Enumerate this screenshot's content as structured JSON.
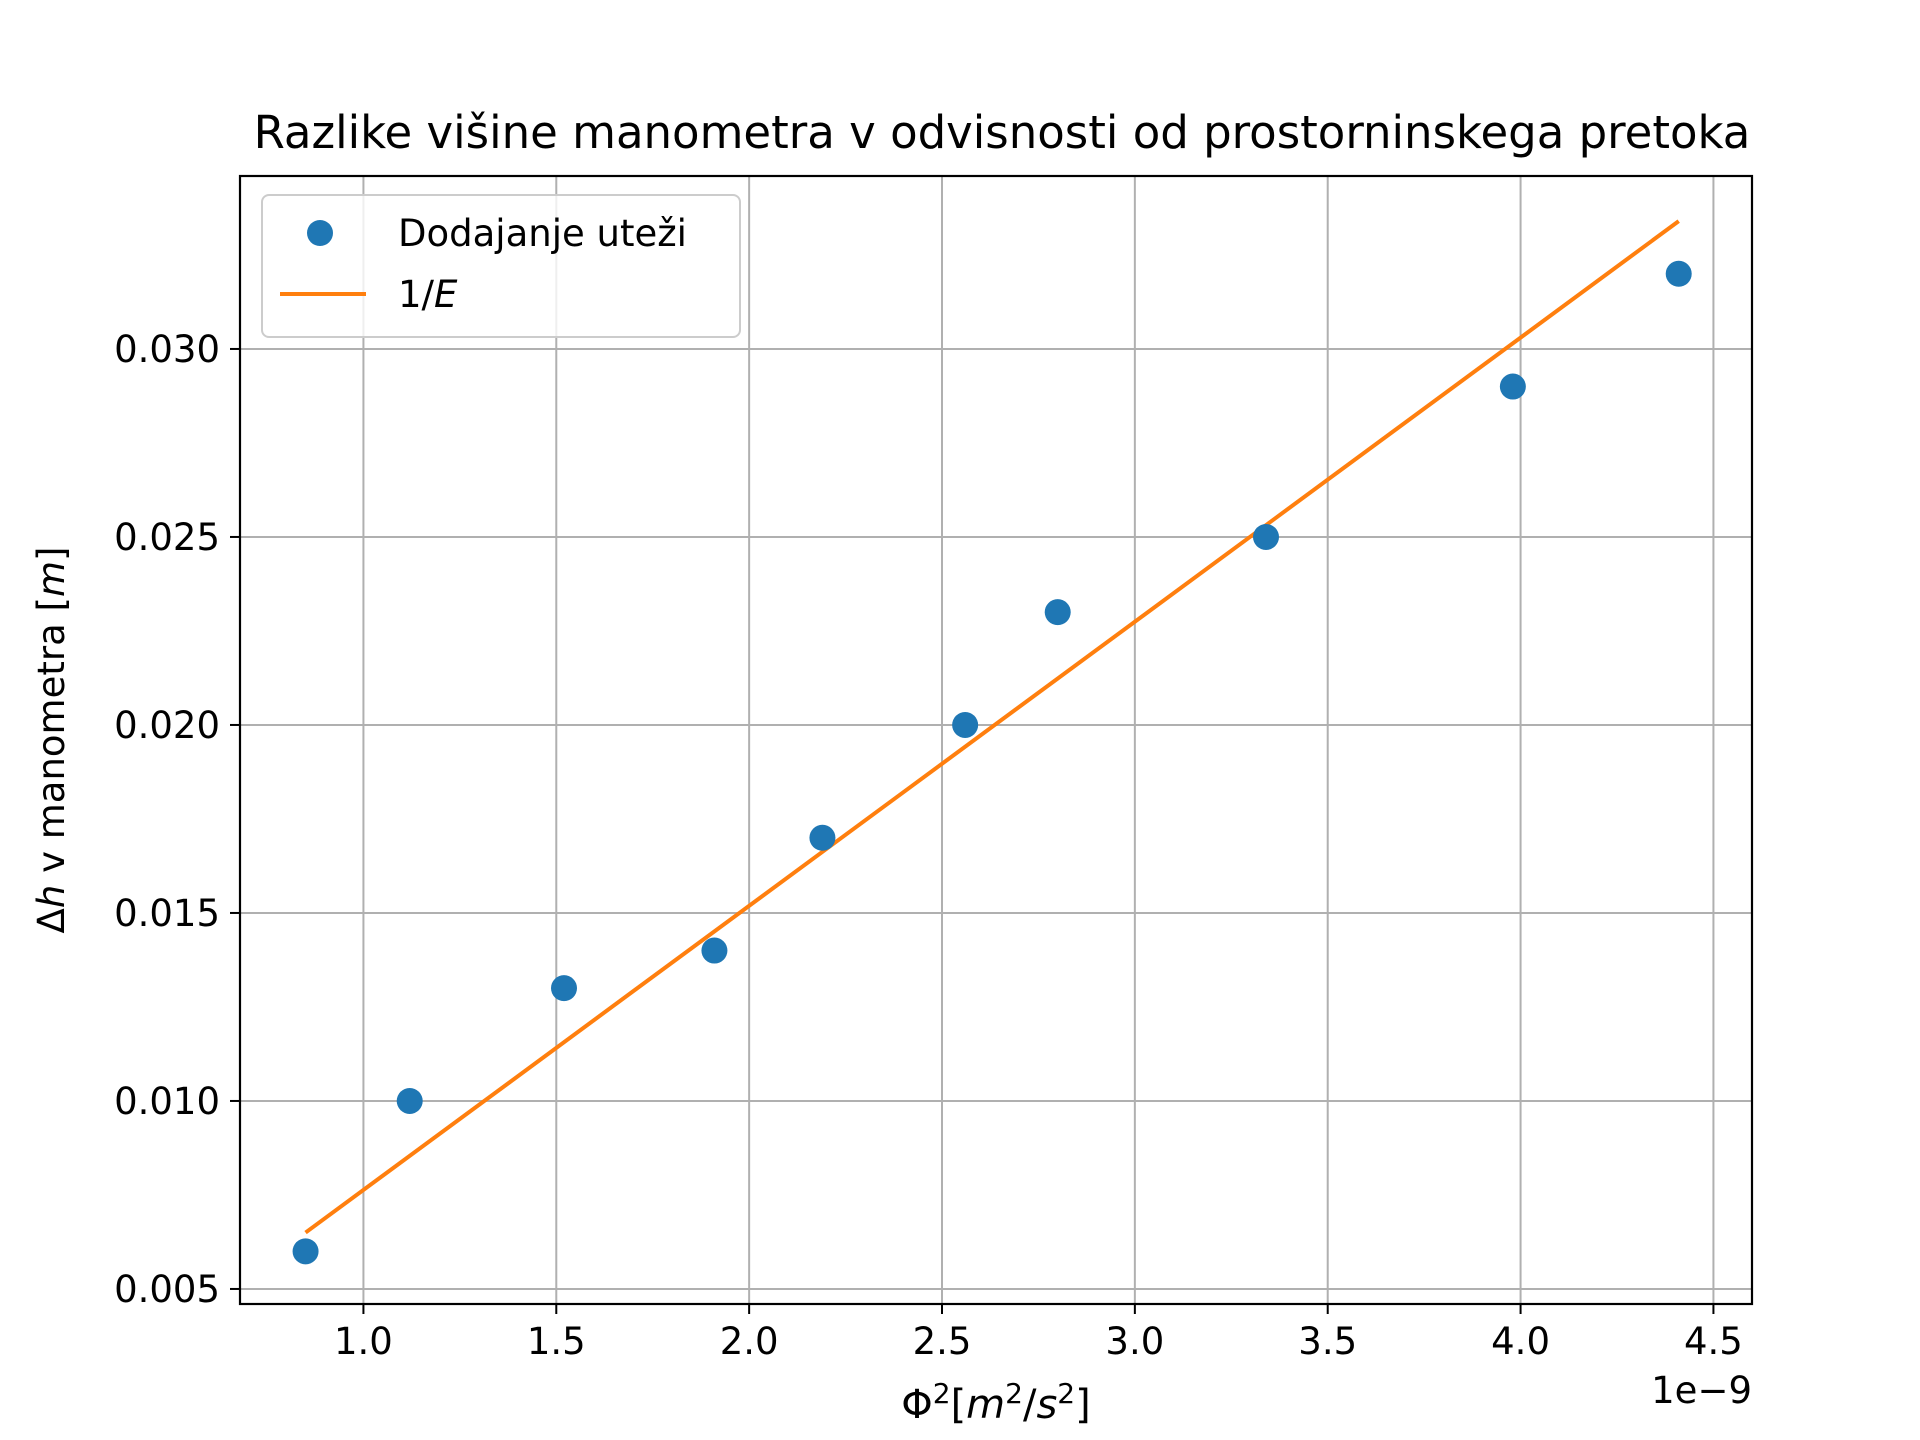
{
  "chart_data": {
    "type": "scatter",
    "title": "Razlike višine manometra v odvisnosti od prostorninskega pretoka",
    "xlabel": {
      "main": "Φ",
      "sup1": "2",
      "open": "[",
      "m": "m",
      "sup2": "2",
      "slash": "/",
      "s": "s",
      "sup3": "2",
      "close": "]"
    },
    "ylabel": {
      "delta": "Δ",
      "h": "h",
      "rest": " v manometra [",
      "m": "m",
      "close": "]"
    },
    "x_offset_label": "1e−9",
    "xlim": [
      0.68,
      4.6
    ],
    "ylim": [
      0.0046,
      0.0346
    ],
    "x_ticks": [
      1.0,
      1.5,
      2.0,
      2.5,
      3.0,
      3.5,
      4.0,
      4.5
    ],
    "x_tick_labels": [
      "1.0",
      "1.5",
      "2.0",
      "2.5",
      "3.0",
      "3.5",
      "4.0",
      "4.5"
    ],
    "y_ticks": [
      0.005,
      0.01,
      0.015,
      0.02,
      0.025,
      0.03
    ],
    "y_tick_labels": [
      "0.005",
      "0.010",
      "0.015",
      "0.020",
      "0.025",
      "0.030"
    ],
    "grid": true,
    "legend_position": "top-left",
    "series": [
      {
        "name": "Dodajanje uteži",
        "kind": "markers",
        "color": "#1f77b4",
        "x": [
          0.85,
          1.12,
          1.52,
          1.91,
          2.19,
          2.56,
          2.8,
          3.34,
          3.98,
          4.41
        ],
        "y": [
          0.006,
          0.01,
          0.013,
          0.014,
          0.017,
          0.02,
          0.023,
          0.025,
          0.029,
          0.032
        ]
      },
      {
        "name_main": "1/",
        "name_italic": "E",
        "kind": "line",
        "color": "#ff7f0e",
        "x": [
          0.85,
          4.41
        ],
        "y": [
          0.0065,
          0.0334
        ]
      }
    ]
  }
}
